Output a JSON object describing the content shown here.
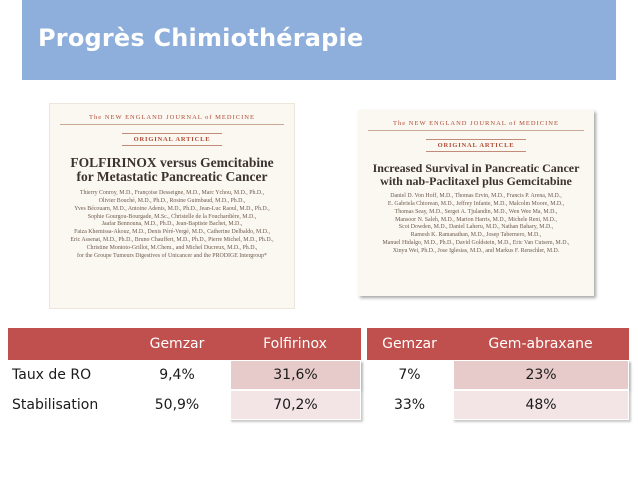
{
  "slide": {
    "title": "Progrès Chimiothérapie",
    "header_color": "#8eaedb",
    "table_header_color": "#c0504d"
  },
  "articles": [
    {
      "journal": "The NEW ENGLAND JOURNAL of MEDICINE",
      "section": "ORIGINAL ARTICLE",
      "headline_line1": "FOLFIRINOX versus Gemcitabine",
      "headline_line2": "for Metastatic Pancreatic Cancer",
      "authors": [
        "Thierry Conroy, M.D., Françoise Desseigne, M.D., Marc Ychou, M.D., Ph.D.,",
        "Olivier Bouché, M.D., Ph.D., Rosine Guimbaud, M.D., Ph.D.,",
        "Yves Bécouarn, M.D., Antoine Adenis, M.D., Ph.D., Jean-Luc Raoul, M.D., Ph.D.,",
        "Sophie Gourgou-Bourgade, M.Sc., Christelle de la Fouchardière, M.D.,",
        "Jaafar Bennouna, M.D., Ph.D., Jean-Baptiste Bachet, M.D.,",
        "Faiza Khemissa-Akouz, M.D., Denis Péré-Vergé, M.D., Catherine Delbaldo, M.D.,",
        "Eric Assenat, M.D., Ph.D., Bruno Chauffert, M.D., Ph.D., Pierre Michel, M.D., Ph.D.,",
        "Christine Montoto-Grillot, M.Chem., and Michel Ducreux, M.D., Ph.D.,",
        "for the Groupe Tumeurs Digestives of Unicancer and the PRODIGE Intergroup*"
      ]
    },
    {
      "journal": "The NEW ENGLAND JOURNAL of MEDICINE",
      "section": "ORIGINAL ARTICLE",
      "headline_line1": "Increased Survival in Pancreatic Cancer",
      "headline_line2": "with nab-Paclitaxel plus Gemcitabine",
      "authors": [
        "Daniel D. Von Hoff, M.D., Thomas Ervin, M.D., Francis P. Arena, M.D.,",
        "E. Gabriela Chiorean, M.D., Jeffrey Infante, M.D., Malcolm Moore, M.D.,",
        "Thomas Seay, M.D., Sergei A. Tjulandin, M.D., Wen Wee Ma, M.D.,",
        "Mansoor N. Saleh, M.D., Marion Harris, M.D., Michele Reni, M.D.,",
        "Scot Dowden, M.D., Daniel Laheru, M.D., Nathan Bahary, M.D.,",
        "Ramesh K. Ramanathan, M.D., Josep Tabernero, M.D.,",
        "Manuel Hidalgo, M.D., Ph.D., David Goldstein, M.D., Eric Van Cutsem, M.D.,",
        "Xinyu Wei, Ph.D., Jose Iglesias, M.D., and Markus F. Renschler, M.D."
      ]
    }
  ],
  "table_folfirinox": {
    "headers": [
      "",
      "Gemzar",
      "Folfirinox"
    ],
    "rows": [
      [
        "Taux de RO",
        "9,4%",
        "31,6%"
      ],
      [
        "Stabilisation",
        "50,9%",
        "70,2%"
      ]
    ]
  },
  "table_abraxane": {
    "headers": [
      "Gemzar",
      "Gem-abraxane"
    ],
    "rows": [
      [
        "7%",
        "23%"
      ],
      [
        "33%",
        "48%"
      ]
    ]
  }
}
